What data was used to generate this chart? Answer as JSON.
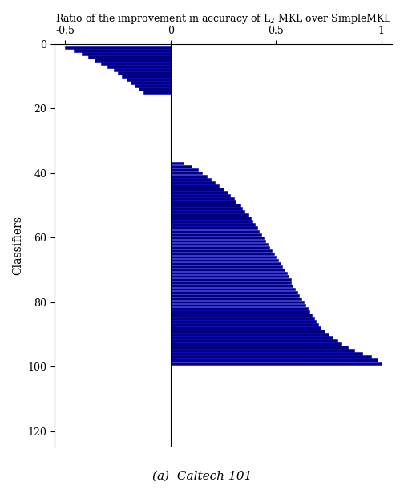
{
  "title": "Ratio of the improvement in accuracy of L$_2$ MKL over SimpleMKL",
  "ylabel": "Classifiers",
  "caption": "(a)  Caltech-101",
  "xlim": [
    -0.55,
    1.05
  ],
  "ylim": [
    0,
    125
  ],
  "xticks": [
    -0.5,
    0,
    0.5,
    1
  ],
  "xtick_labels": [
    "-0.5",
    "0",
    "0.5",
    "1"
  ],
  "yticks": [
    0,
    20,
    40,
    60,
    80,
    100,
    120
  ],
  "bar_color": "#000080",
  "bar_edge_color": "#0000cd",
  "bar_height": 0.85,
  "values": [
    -0.5,
    -0.46,
    -0.42,
    -0.39,
    -0.36,
    -0.33,
    -0.3,
    -0.27,
    -0.25,
    -0.23,
    -0.21,
    -0.19,
    -0.17,
    -0.15,
    -0.13,
    0.0,
    0.0,
    0.0,
    0.0,
    0.0,
    0.0,
    0.0,
    0.0,
    0.0,
    0.0,
    0.0,
    0.0,
    0.0,
    0.0,
    0.0,
    0.0,
    0.0,
    0.0,
    0.0,
    0.0,
    0.0,
    0.06,
    0.1,
    0.13,
    0.15,
    0.17,
    0.19,
    0.21,
    0.23,
    0.25,
    0.27,
    0.28,
    0.3,
    0.31,
    0.33,
    0.34,
    0.35,
    0.37,
    0.38,
    0.39,
    0.4,
    0.41,
    0.42,
    0.43,
    0.44,
    0.45,
    0.46,
    0.47,
    0.48,
    0.49,
    0.5,
    0.51,
    0.52,
    0.53,
    0.54,
    0.55,
    0.56,
    0.57,
    0.57,
    0.58,
    0.59,
    0.6,
    0.61,
    0.62,
    0.63,
    0.64,
    0.65,
    0.66,
    0.67,
    0.68,
    0.69,
    0.7,
    0.71,
    0.73,
    0.75,
    0.77,
    0.79,
    0.81,
    0.84,
    0.87,
    0.91,
    0.95,
    0.98,
    1.0
  ]
}
